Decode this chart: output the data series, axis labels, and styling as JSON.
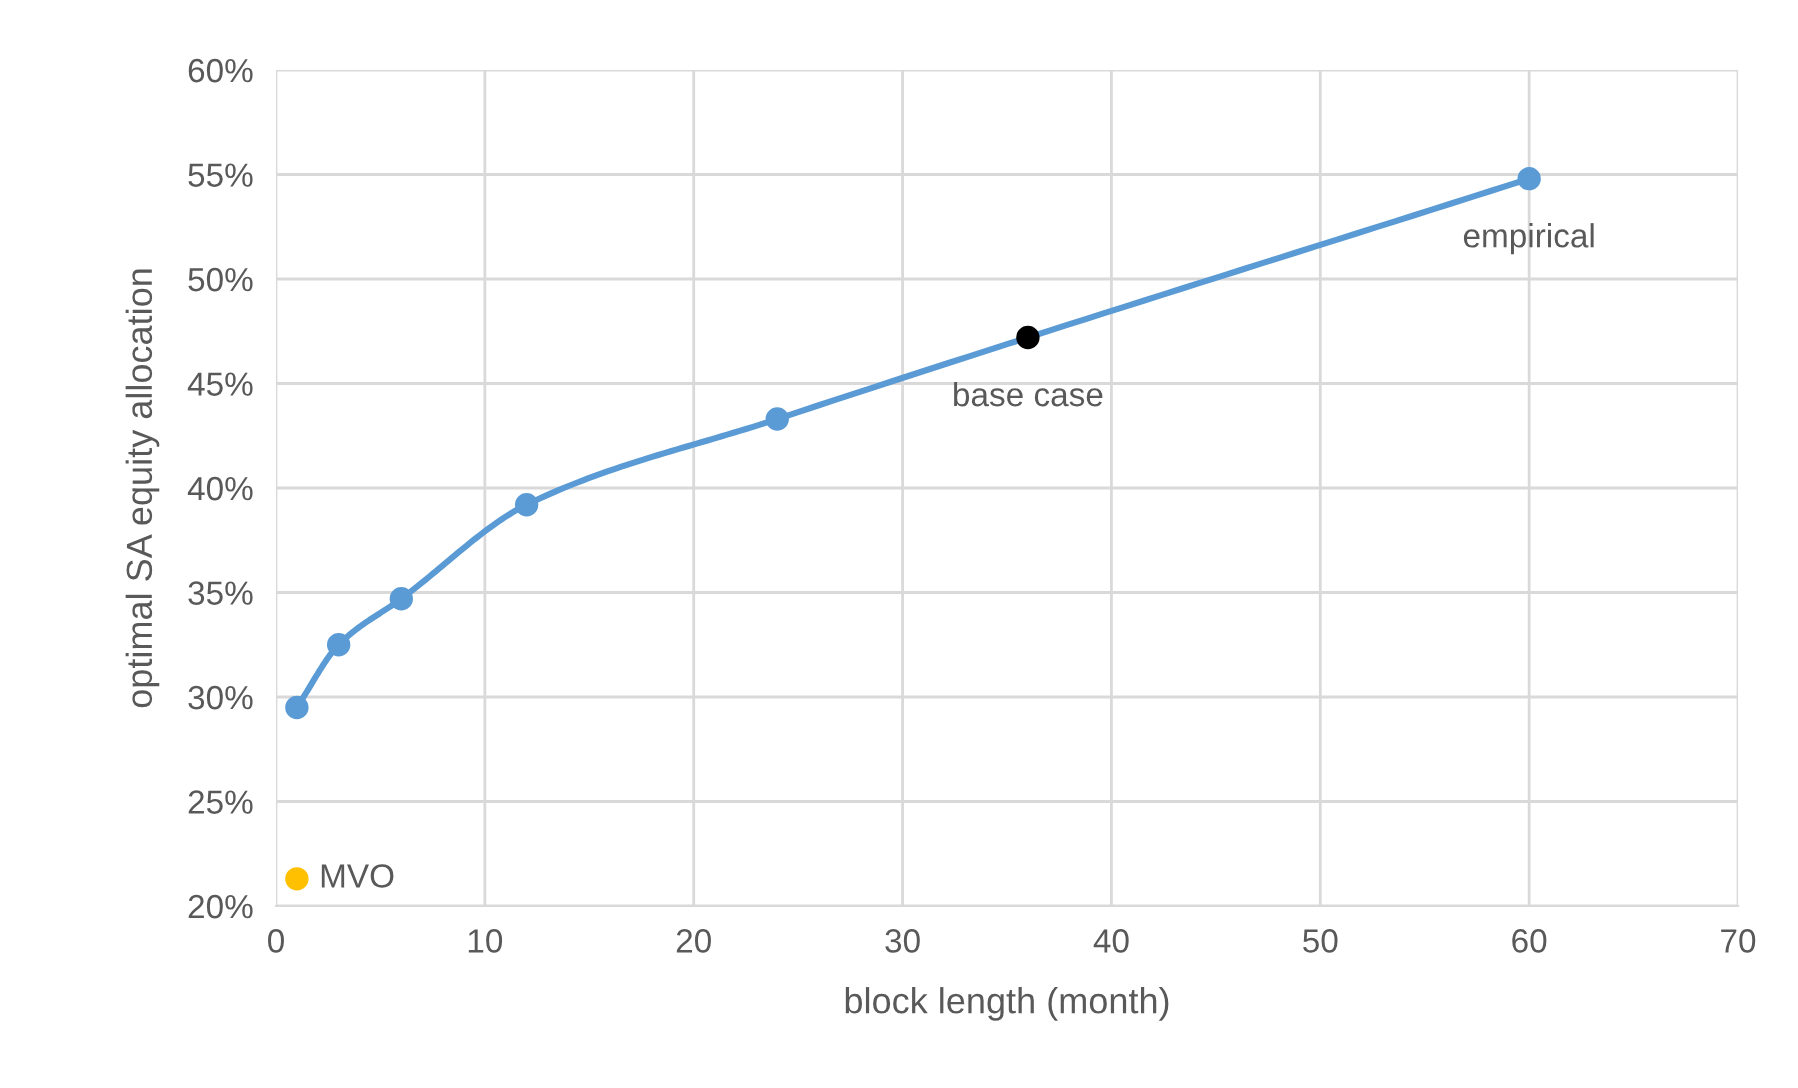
{
  "chart_data": {
    "type": "line",
    "xlabel": "block length (month)",
    "ylabel": "optimal SA equity allocation",
    "series": [
      {
        "color": "#5b9bd5",
        "x": [
          1,
          3,
          6,
          12,
          24,
          60
        ],
        "values": [
          29.5,
          32.5,
          34.7,
          39.2,
          43.3,
          54.8
        ]
      },
      {
        "name": "base case",
        "type": "scatter",
        "color": "#000000",
        "x": [
          36
        ],
        "values": [
          47.2
        ]
      },
      {
        "name": "MVO",
        "type": "scatter",
        "color": "#ffc000",
        "x": [
          1
        ],
        "values": [
          21.3
        ]
      }
    ],
    "annotations": [
      {
        "text": "empirical",
        "x": 60,
        "y": 54.8
      }
    ],
    "xlim": [
      0,
      70
    ],
    "xticks": [
      0,
      10,
      20,
      30,
      40,
      50,
      60,
      70
    ],
    "ylim": [
      20,
      60
    ],
    "yticks": [
      {
        "value": 20,
        "label": "20%"
      },
      {
        "value": 25,
        "label": "25%"
      },
      {
        "value": 30,
        "label": "30%"
      },
      {
        "value": 35,
        "label": "35%"
      },
      {
        "value": 40,
        "label": "40%"
      },
      {
        "value": 45,
        "label": "45%"
      },
      {
        "value": 50,
        "label": "50%"
      },
      {
        "value": 55,
        "label": "55%"
      },
      {
        "value": 60,
        "label": "60%"
      }
    ],
    "grid": true,
    "marker": "circle",
    "legend": false
  }
}
